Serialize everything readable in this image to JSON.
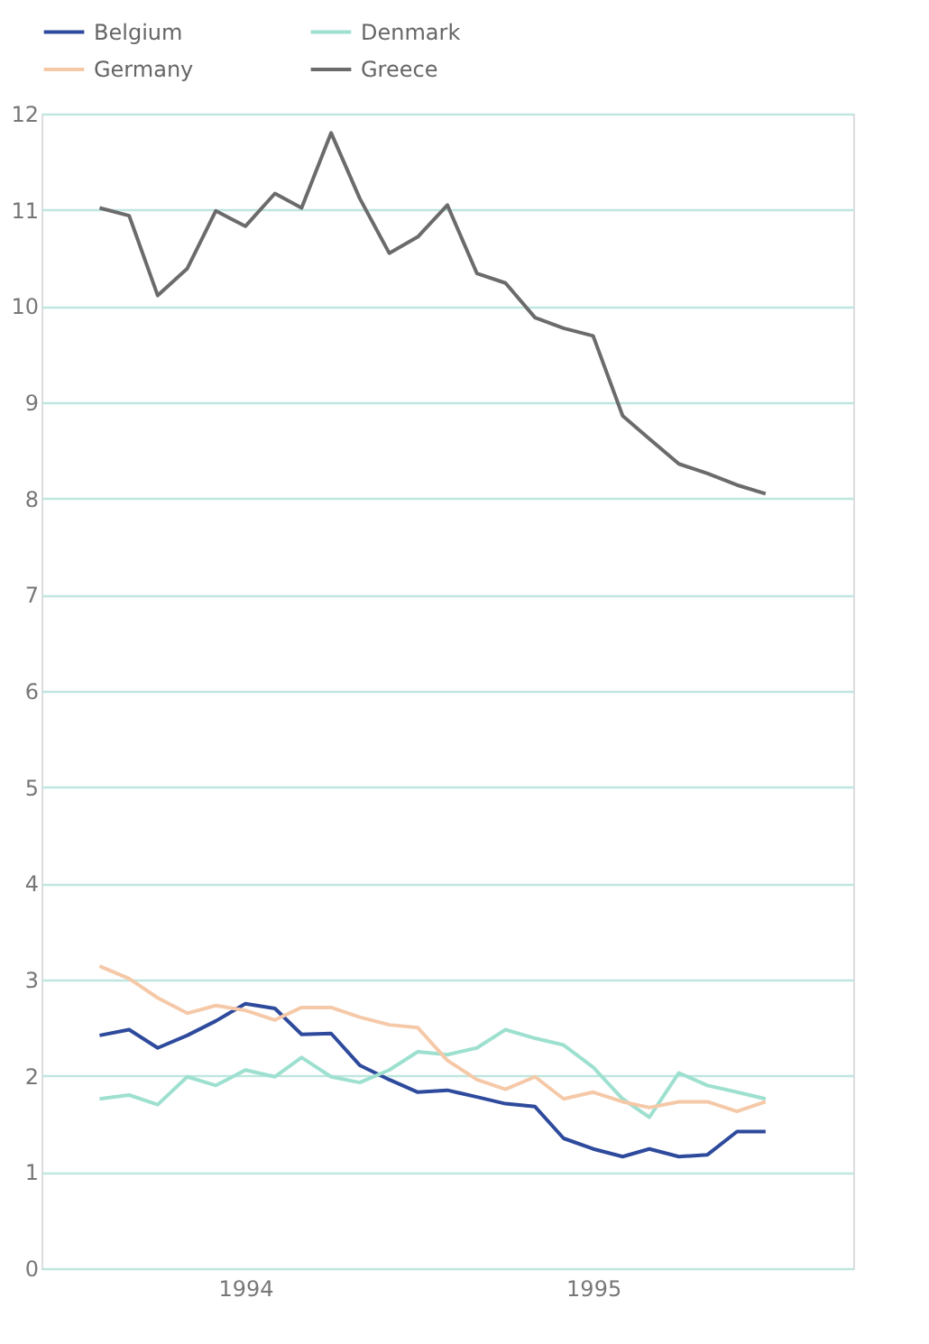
{
  "chart_data": {
    "type": "line",
    "x": [
      "1993-08",
      "1993-09",
      "1993-10",
      "1993-11",
      "1993-12",
      "1994-01",
      "1994-02",
      "1994-03",
      "1994-04",
      "1994-05",
      "1994-06",
      "1994-07",
      "1994-08",
      "1994-09",
      "1994-10",
      "1994-11",
      "1994-12",
      "1995-01",
      "1995-02",
      "1995-03",
      "1995-04",
      "1995-05",
      "1995-06",
      "1995-07"
    ],
    "series": [
      {
        "name": "Belgium",
        "color": "#2e4a9c",
        "values": [
          2.42,
          2.48,
          2.29,
          2.42,
          2.57,
          2.75,
          2.7,
          2.43,
          2.44,
          2.11,
          1.96,
          1.83,
          1.85,
          1.78,
          1.71,
          1.68,
          1.35,
          1.24,
          1.16,
          1.24,
          1.16,
          1.18,
          1.42,
          1.42
        ]
      },
      {
        "name": "Denmark",
        "color": "#9ee0d0",
        "values": [
          1.76,
          1.8,
          1.7,
          1.99,
          1.9,
          2.06,
          1.99,
          2.19,
          1.99,
          1.93,
          2.06,
          2.25,
          2.22,
          2.29,
          2.48,
          2.39,
          2.32,
          2.09,
          1.76,
          1.57,
          2.03,
          1.9,
          1.83,
          1.76
        ]
      },
      {
        "name": "Germany",
        "color": "#f5c9a8",
        "values": [
          3.14,
          3.01,
          2.81,
          2.65,
          2.73,
          2.68,
          2.58,
          2.71,
          2.71,
          2.61,
          2.53,
          2.5,
          2.16,
          1.96,
          1.86,
          1.99,
          1.76,
          1.83,
          1.73,
          1.67,
          1.73,
          1.73,
          1.63,
          1.73
        ]
      },
      {
        "name": "Greece",
        "color": "#6b6b6b",
        "values": [
          11.02,
          10.94,
          10.11,
          10.39,
          10.99,
          10.83,
          11.17,
          11.02,
          11.8,
          11.12,
          10.55,
          10.72,
          11.05,
          10.34,
          10.24,
          9.88,
          9.77,
          9.69,
          8.86,
          8.62,
          8.36,
          8.26,
          8.14,
          8.05
        ]
      }
    ],
    "xlim": [
      "1993-06",
      "1995-10"
    ],
    "xticks": [
      {
        "value": "1994-01",
        "label": "1994"
      },
      {
        "value": "1995-01",
        "label": "1995"
      }
    ],
    "ylim": [
      0,
      12
    ],
    "yticks": [
      0,
      1,
      2,
      3,
      4,
      5,
      6,
      7,
      8,
      9,
      10,
      11,
      12
    ],
    "grid": "y",
    "legend": "top left",
    "line_style": "solid",
    "marker": "none"
  }
}
